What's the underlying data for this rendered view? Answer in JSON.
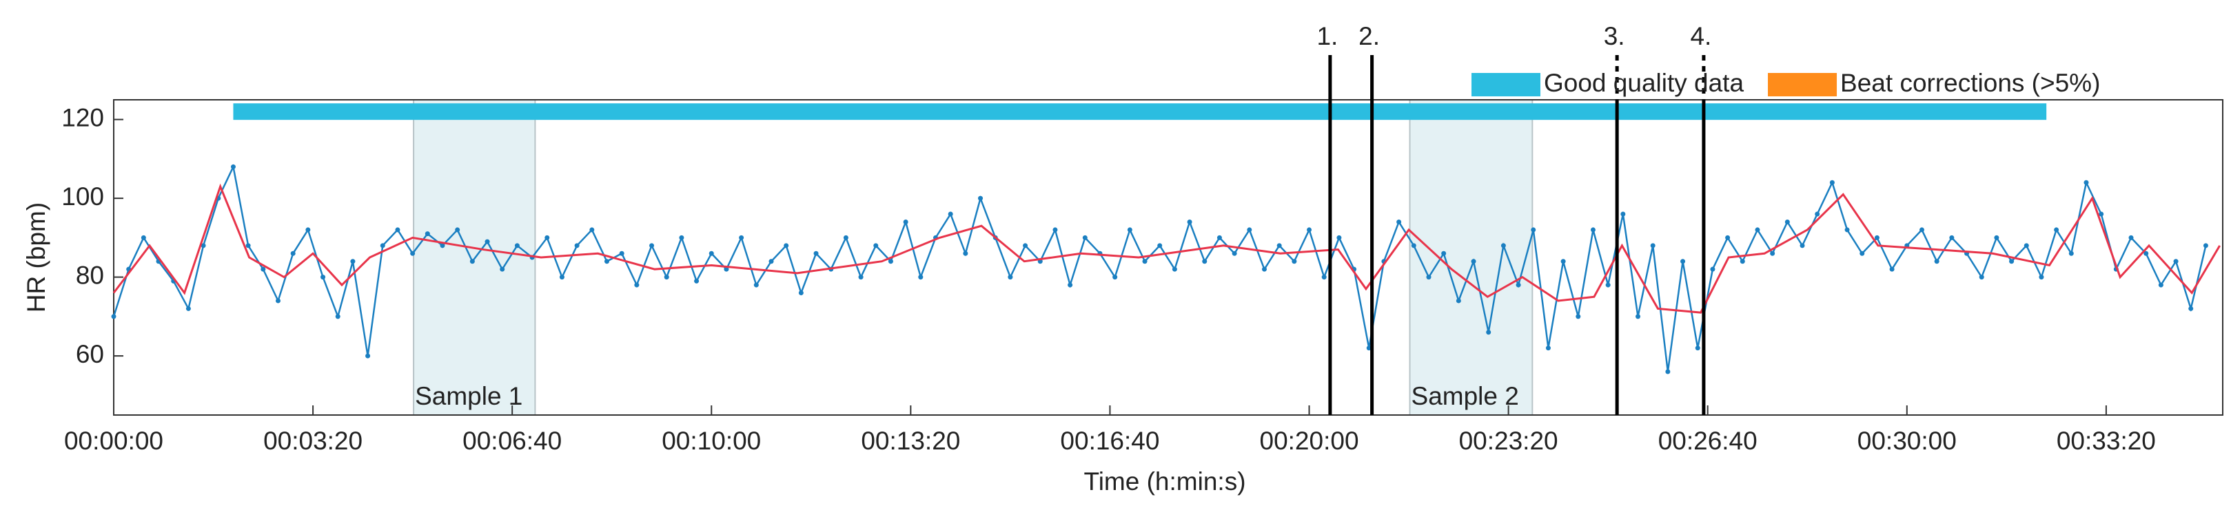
{
  "chart_data": {
    "type": "line",
    "xlabel": "Time (h:min:s)",
    "ylabel": "HR (bpm)",
    "xlim": [
      0,
      2117
    ],
    "ylim": [
      45,
      125
    ],
    "xticks": [
      {
        "value": 0,
        "label": "00:00:00"
      },
      {
        "value": 200,
        "label": "00:03:20"
      },
      {
        "value": 400,
        "label": "00:06:40"
      },
      {
        "value": 600,
        "label": "00:10:00"
      },
      {
        "value": 800,
        "label": "00:13:20"
      },
      {
        "value": 1000,
        "label": "00:16:40"
      },
      {
        "value": 1200,
        "label": "00:20:00"
      },
      {
        "value": 1400,
        "label": "00:23:20"
      },
      {
        "value": 1600,
        "label": "00:26:40"
      },
      {
        "value": 1800,
        "label": "00:30:00"
      },
      {
        "value": 2000,
        "label": "00:33:20"
      }
    ],
    "yticks": [
      60,
      80,
      100,
      120
    ],
    "legend": [
      {
        "name": "Good quality data",
        "color": "#2bbde0"
      },
      {
        "name": "Beat corrections (>5%)",
        "color": "#ff8c1a"
      }
    ],
    "good_quality": {
      "x": [
        120,
        1940
      ],
      "y": 122,
      "color": "#2bbde0"
    },
    "regions": [
      {
        "label": "Sample 1",
        "x": [
          301,
          423
        ]
      },
      {
        "label": "Sample 2",
        "x": [
          1301,
          1424
        ]
      }
    ],
    "events": [
      {
        "label": "1.",
        "x": 1221,
        "dashed": false
      },
      {
        "label": "2.",
        "x": 1263,
        "dashed": false
      },
      {
        "label": "3.",
        "x": 1509,
        "dashed": true
      },
      {
        "label": "4.",
        "x": 1596,
        "dashed": true
      }
    ],
    "series": [
      {
        "color": "#1a7fc1",
        "x": [
          0,
          15,
          30,
          45,
          60,
          75,
          90,
          105,
          120,
          135,
          150,
          165,
          180,
          195,
          210,
          225,
          240,
          255,
          270,
          285,
          300,
          315,
          330,
          345,
          360,
          375,
          390,
          405,
          420,
          435,
          450,
          465,
          480,
          495,
          510,
          525,
          540,
          555,
          570,
          585,
          600,
          615,
          630,
          645,
          660,
          675,
          690,
          705,
          720,
          735,
          750,
          765,
          780,
          795,
          810,
          825,
          840,
          855,
          870,
          885,
          900,
          915,
          930,
          945,
          960,
          975,
          990,
          1005,
          1020,
          1035,
          1050,
          1065,
          1080,
          1095,
          1110,
          1125,
          1140,
          1155,
          1170,
          1185,
          1200,
          1215,
          1230,
          1245,
          1260,
          1275,
          1290,
          1305,
          1320,
          1335,
          1350,
          1365,
          1380,
          1395,
          1410,
          1425,
          1440,
          1455,
          1470,
          1485,
          1500,
          1515,
          1530,
          1545,
          1560,
          1575,
          1590,
          1605,
          1620,
          1635,
          1650,
          1665,
          1680,
          1695,
          1710,
          1725,
          1740,
          1755,
          1770,
          1785,
          1800,
          1815,
          1830,
          1845,
          1860,
          1875,
          1890,
          1905,
          1920,
          1935,
          1950,
          1965,
          1980,
          1995,
          2010,
          2025,
          2040,
          2055,
          2070,
          2085,
          2100
        ],
        "values": [
          70,
          82,
          90,
          84,
          79,
          72,
          88,
          100,
          108,
          88,
          82,
          74,
          86,
          92,
          80,
          70,
          84,
          60,
          88,
          92,
          86,
          91,
          88,
          92,
          84,
          89,
          82,
          88,
          85,
          90,
          80,
          88,
          92,
          84,
          86,
          78,
          88,
          80,
          90,
          79,
          86,
          82,
          90,
          78,
          84,
          88,
          76,
          86,
          82,
          90,
          80,
          88,
          84,
          94,
          80,
          90,
          96,
          86,
          100,
          90,
          80,
          88,
          84,
          92,
          78,
          90,
          86,
          80,
          92,
          84,
          88,
          82,
          94,
          84,
          90,
          86,
          92,
          82,
          88,
          84,
          92,
          80,
          90,
          82,
          62,
          84,
          94,
          88,
          80,
          86,
          74,
          84,
          66,
          88,
          78,
          92,
          62,
          84,
          70,
          92,
          78,
          96,
          70,
          88,
          56,
          84,
          62,
          82,
          90,
          84,
          92,
          86,
          94,
          88,
          96,
          104,
          92,
          86,
          90,
          82,
          88,
          92,
          84,
          90,
          86,
          80,
          90,
          84,
          88,
          80,
          92,
          86,
          104,
          96,
          82,
          90,
          86,
          78,
          84,
          72,
          88
        ]
      },
      {
        "color": "#e8344a",
        "x": [
          0,
          36,
          71,
          107,
          136,
          171,
          200,
          229,
          257,
          300,
          371,
          429,
          486,
          543,
          600,
          686,
          771,
          829,
          871,
          914,
          971,
          1029,
          1114,
          1171,
          1229,
          1257,
          1300,
          1343,
          1379,
          1414,
          1450,
          1486,
          1514,
          1550,
          1593,
          1621,
          1657,
          1700,
          1736,
          1771,
          1829,
          1886,
          1943,
          1986,
          2014,
          2043,
          2086,
          2114
        ],
        "values": [
          76,
          88,
          76,
          103,
          85,
          80,
          86,
          78,
          85,
          90,
          87,
          85,
          86,
          82,
          83,
          81,
          84,
          90,
          93,
          84,
          86,
          85,
          88,
          86,
          87,
          77,
          92,
          82,
          75,
          80,
          74,
          75,
          88,
          72,
          71,
          85,
          86,
          92,
          101,
          88,
          87,
          86,
          83,
          100,
          80,
          88,
          76,
          88
        ]
      }
    ]
  }
}
